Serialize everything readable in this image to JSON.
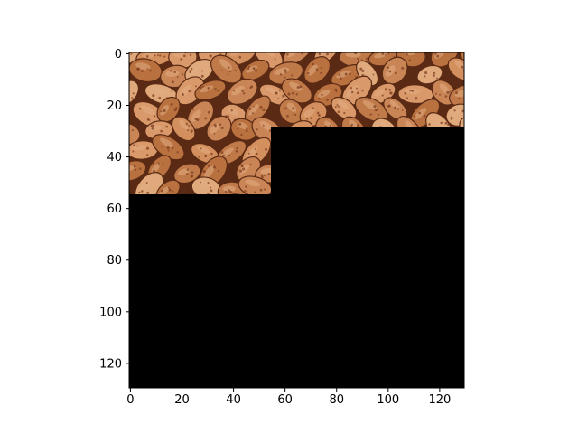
{
  "chart_data": {
    "type": "heatmap",
    "title": "",
    "xlabel": "",
    "ylabel": "",
    "xlim": [
      -0.5,
      129.5
    ],
    "ylim": [
      129.5,
      -0.5
    ],
    "x_ticks": [
      "0",
      "20",
      "40",
      "60",
      "80",
      "100",
      "120"
    ],
    "y_ticks": [
      "0",
      "20",
      "40",
      "60",
      "80",
      "100",
      "120"
    ],
    "image": {
      "width": 130,
      "height": 130,
      "content": "close-up photograph of pinto beans",
      "visible_region": [
        {
          "x_from": 0,
          "x_to": 130,
          "y_from": 0,
          "y_to": 29
        },
        {
          "x_from": 0,
          "x_to": 55,
          "y_from": 29,
          "y_to": 55
        }
      ],
      "masked_fill": "#000000",
      "masked_value": "black (masked out)"
    },
    "grid": false,
    "legend": "none"
  },
  "colors": {
    "background": "#ffffff",
    "mask": "#000000",
    "bean_base": "#c47e4e",
    "bean_light": "#e2ad84",
    "bean_dark": "#5a2a14",
    "speckle": "#7a3a1c"
  }
}
